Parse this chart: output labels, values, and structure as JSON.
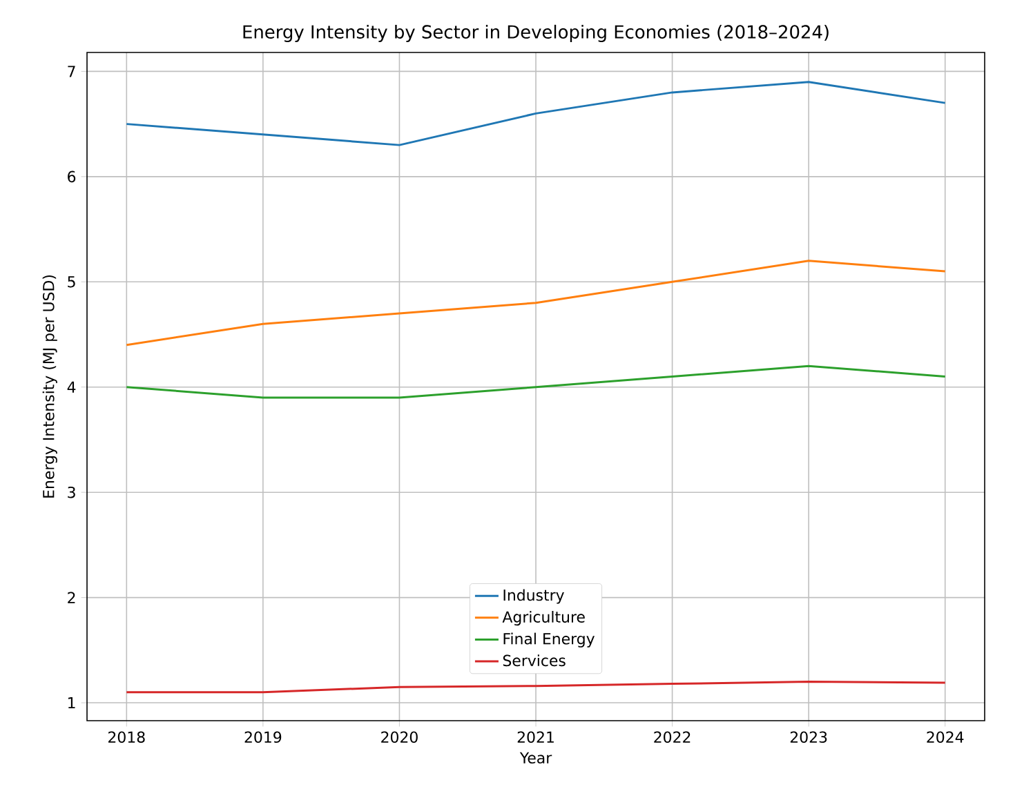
{
  "chart_data": {
    "type": "line",
    "title": "Energy Intensity by Sector in Developing Economies (2018–2024)",
    "xlabel": "Year",
    "ylabel": "Energy Intensity (MJ per USD)",
    "x": [
      2018,
      2019,
      2020,
      2021,
      2022,
      2023,
      2024
    ],
    "series": [
      {
        "name": "Industry",
        "color": "#1f77b4",
        "values": [
          6.5,
          6.4,
          6.3,
          6.6,
          6.8,
          6.9,
          6.7
        ]
      },
      {
        "name": "Agriculture",
        "color": "#ff7f0e",
        "values": [
          4.4,
          4.6,
          4.7,
          4.8,
          5.0,
          5.2,
          5.1
        ]
      },
      {
        "name": "Final Energy",
        "color": "#2ca02c",
        "values": [
          4.0,
          3.9,
          3.9,
          4.0,
          4.1,
          4.2,
          4.1
        ]
      },
      {
        "name": "Services",
        "color": "#d62728",
        "values": [
          1.1,
          1.1,
          1.15,
          1.16,
          1.18,
          1.2,
          1.19
        ]
      }
    ],
    "xlim": [
      2017.71,
      2024.29
    ],
    "ylim": [
      0.83,
      7.18
    ],
    "xticks": [
      2018,
      2019,
      2020,
      2021,
      2022,
      2023,
      2024
    ],
    "yticks": [
      1,
      2,
      3,
      4,
      5,
      6,
      7
    ],
    "grid": true,
    "legend": "bottom",
    "marker": "none",
    "line_style": "solid"
  }
}
